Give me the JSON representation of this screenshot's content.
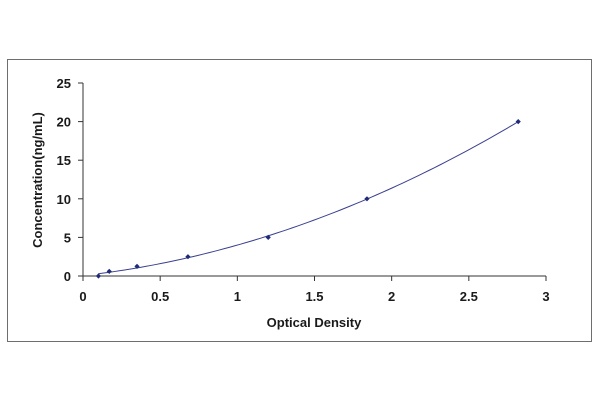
{
  "chart_data": {
    "type": "scatter",
    "title": "",
    "xlabel": "Optical Density",
    "ylabel": "Concentration(ng/mL)",
    "xlim": [
      0,
      3
    ],
    "ylim": [
      0,
      25
    ],
    "xticks": [
      0,
      0.5,
      1,
      1.5,
      2,
      2.5,
      3
    ],
    "yticks": [
      0,
      5,
      10,
      15,
      20,
      25
    ],
    "xtick_labels": [
      "0",
      "0.5",
      "1",
      "1.5",
      "2",
      "2.5",
      "3"
    ],
    "ytick_labels": [
      "0",
      "5",
      "10",
      "15",
      "20",
      "25"
    ],
    "grid": false,
    "legend": "none",
    "series": [
      {
        "points": [
          {
            "x": 0.1,
            "y": 0.0
          },
          {
            "x": 0.17,
            "y": 0.6
          },
          {
            "x": 0.35,
            "y": 1.25
          },
          {
            "x": 0.68,
            "y": 2.5
          },
          {
            "x": 1.2,
            "y": 5.0
          },
          {
            "x": 1.84,
            "y": 10.0
          },
          {
            "x": 2.82,
            "y": 20.0
          }
        ],
        "fit_curve": true
      }
    ],
    "colors": {
      "marker": "#1f2a78",
      "curve": "#3a3f8f",
      "axis": "#333333"
    }
  }
}
